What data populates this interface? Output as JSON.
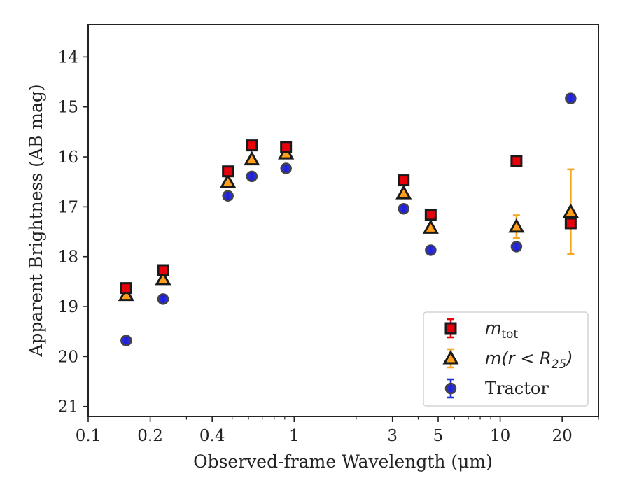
{
  "chart_data": {
    "type": "scatter",
    "xlabel": "Observed-frame Wavelength (μm)",
    "ylabel": "Apparent Brightness (AB mag)",
    "x_scale": "log",
    "y_inverted": true,
    "xlim": [
      0.1,
      30
    ],
    "ylim": [
      21.2,
      13.35
    ],
    "x_ticks": [
      {
        "value": 0.1,
        "label": "0.1"
      },
      {
        "value": 0.2,
        "label": "0.2"
      },
      {
        "value": 0.4,
        "label": "0.4"
      },
      {
        "value": 1,
        "label": "1"
      },
      {
        "value": 3,
        "label": "3"
      },
      {
        "value": 5,
        "label": "5"
      },
      {
        "value": 10,
        "label": "10"
      },
      {
        "value": 20,
        "label": "20"
      }
    ],
    "y_ticks": [
      {
        "value": 14,
        "label": "14"
      },
      {
        "value": 15,
        "label": "15"
      },
      {
        "value": 16,
        "label": "16"
      },
      {
        "value": 17,
        "label": "17"
      },
      {
        "value": 18,
        "label": "18"
      },
      {
        "value": 19,
        "label": "19"
      },
      {
        "value": 20,
        "label": "20"
      },
      {
        "value": 21,
        "label": "21"
      }
    ],
    "grid": false,
    "legend_position": "lower-right",
    "series": [
      {
        "key": "mtot",
        "legend_main": "m",
        "legend_sub": "tot",
        "marker": "square",
        "color": "#e8000b",
        "edge_color": "#1a1a1a",
        "error_color": "#e8000b",
        "points": [
          {
            "x": 0.153,
            "y": 18.63,
            "err": 0.0
          },
          {
            "x": 0.231,
            "y": 18.27,
            "err": 0.0
          },
          {
            "x": 0.477,
            "y": 16.29,
            "err": 0.0
          },
          {
            "x": 0.623,
            "y": 15.77,
            "err": 0.0
          },
          {
            "x": 0.913,
            "y": 15.8,
            "err": 0.0
          },
          {
            "x": 3.4,
            "y": 16.47,
            "err": 0.0
          },
          {
            "x": 4.6,
            "y": 17.16,
            "err": 0.0
          },
          {
            "x": 12.0,
            "y": 16.08,
            "err": 0.0
          },
          {
            "x": 22.0,
            "y": 17.33,
            "err": 0.0
          }
        ]
      },
      {
        "key": "mr25",
        "legend_main": "m(r < R",
        "legend_sub": "25",
        "legend_tail": ")",
        "marker": "triangle",
        "color": "#ff9f1c",
        "edge_color": "#1a1a1a",
        "error_color": "#f5a623",
        "points": [
          {
            "x": 0.153,
            "y": 18.77,
            "err": 0.0
          },
          {
            "x": 0.231,
            "y": 18.45,
            "err": 0.0
          },
          {
            "x": 0.477,
            "y": 16.5,
            "err": 0.0
          },
          {
            "x": 0.623,
            "y": 16.05,
            "err": 0.0
          },
          {
            "x": 0.913,
            "y": 15.93,
            "err": 0.0
          },
          {
            "x": 3.4,
            "y": 16.73,
            "err": 0.0
          },
          {
            "x": 4.6,
            "y": 17.42,
            "err": 0.0
          },
          {
            "x": 12.0,
            "y": 17.4,
            "err": 0.23
          },
          {
            "x": 22.0,
            "y": 17.1,
            "err": 0.85
          }
        ]
      },
      {
        "key": "tractor",
        "legend_main": "Tractor",
        "marker": "circle",
        "color": "#1f1fd6",
        "edge_color": "#444444",
        "error_color": "#2233dd",
        "points": [
          {
            "x": 0.153,
            "y": 19.68,
            "err": 0.07
          },
          {
            "x": 0.231,
            "y": 18.85,
            "err": 0.07
          },
          {
            "x": 0.477,
            "y": 16.78,
            "err": 0.07
          },
          {
            "x": 0.623,
            "y": 16.39,
            "err": 0.07
          },
          {
            "x": 0.913,
            "y": 16.23,
            "err": 0.07
          },
          {
            "x": 3.4,
            "y": 17.04,
            "err": 0.07
          },
          {
            "x": 4.6,
            "y": 17.87,
            "err": 0.07
          },
          {
            "x": 12.0,
            "y": 17.8,
            "err": 0.07
          },
          {
            "x": 22.0,
            "y": 14.83,
            "err": 0.08
          }
        ]
      }
    ]
  }
}
